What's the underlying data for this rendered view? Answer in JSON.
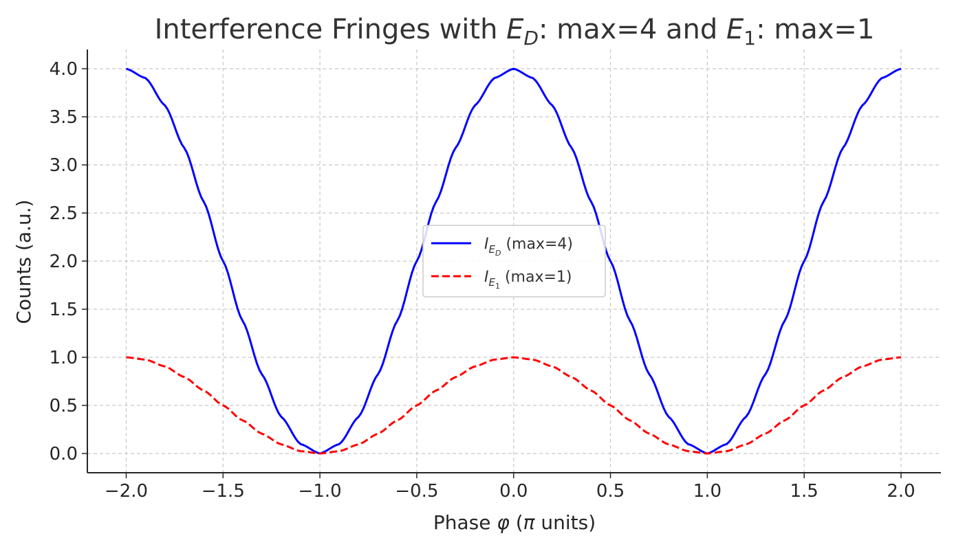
{
  "chart_data": {
    "type": "line",
    "title": "Interference Fringes with E_D: max=4 and E_1: max=1",
    "title_parts": {
      "pre": "Interference Fringes with ",
      "sym1": "E",
      "sub1": "D",
      "mid": ": max=4 and ",
      "sym2": "E",
      "sub2": "1",
      "post": ": max=1"
    },
    "xlabel": "Phase φ (π units)",
    "xlabel_parts": {
      "pre": "Phase ",
      "phi": "φ",
      "mid": " (",
      "pi": "π",
      "post": " units)"
    },
    "ylabel": "Counts (a.u.)",
    "xlim": [
      -2.2,
      2.2
    ],
    "ylim": [
      -0.2,
      4.2
    ],
    "xticks": [
      -2.0,
      -1.5,
      -1.0,
      -0.5,
      0.0,
      0.5,
      1.0,
      1.5,
      2.0
    ],
    "xtick_labels": [
      "−2.0",
      "−1.5",
      "−1.0",
      "−0.5",
      "0.0",
      "0.5",
      "1.0",
      "1.5",
      "2.0"
    ],
    "yticks": [
      0.0,
      0.5,
      1.0,
      1.5,
      2.0,
      2.5,
      3.0,
      3.5,
      4.0
    ],
    "ytick_labels": [
      "0.0",
      "0.5",
      "1.0",
      "1.5",
      "2.0",
      "2.5",
      "3.0",
      "3.5",
      "4.0"
    ],
    "grid": true,
    "legend_position": "center",
    "x": [
      -2.0,
      -1.9,
      -1.8,
      -1.7,
      -1.6,
      -1.5,
      -1.4,
      -1.3,
      -1.2,
      -1.1,
      -1.0,
      -0.9,
      -0.8,
      -0.7,
      -0.6,
      -0.5,
      -0.4,
      -0.3,
      -0.2,
      -0.1,
      0.0,
      0.1,
      0.2,
      0.3,
      0.4,
      0.5,
      0.6,
      0.7,
      0.8,
      0.9,
      1.0,
      1.1,
      1.2,
      1.3,
      1.4,
      1.5,
      1.6,
      1.7,
      1.8,
      1.9,
      2.0
    ],
    "series": [
      {
        "name": "I_ED (max=4)",
        "legend_sym": "I",
        "legend_sub": "E",
        "legend_subsub": "D",
        "legend_text": " (max=4)",
        "color": "#0000ff",
        "style": "solid",
        "values": [
          4.0,
          3.902,
          3.618,
          3.176,
          2.618,
          2.0,
          1.382,
          0.824,
          0.382,
          0.098,
          0.0,
          0.098,
          0.382,
          0.824,
          1.382,
          2.0,
          2.618,
          3.176,
          3.618,
          3.902,
          4.0,
          3.902,
          3.618,
          3.176,
          2.618,
          2.0,
          1.382,
          0.824,
          0.382,
          0.098,
          0.0,
          0.098,
          0.382,
          0.824,
          1.382,
          2.0,
          2.618,
          3.176,
          3.618,
          3.902,
          4.0
        ]
      },
      {
        "name": "I_E1 (max=1)",
        "legend_sym": "I",
        "legend_sub": "E",
        "legend_subsub": "1",
        "legend_text": " (max=1)",
        "color": "#ff0000",
        "style": "dashed",
        "values": [
          1.0,
          0.976,
          0.905,
          0.794,
          0.655,
          0.5,
          0.345,
          0.206,
          0.095,
          0.024,
          0.0,
          0.024,
          0.095,
          0.206,
          0.345,
          0.5,
          0.655,
          0.794,
          0.905,
          0.976,
          1.0,
          0.976,
          0.905,
          0.794,
          0.655,
          0.5,
          0.345,
          0.206,
          0.095,
          0.024,
          0.0,
          0.024,
          0.095,
          0.206,
          0.345,
          0.5,
          0.655,
          0.794,
          0.905,
          0.976,
          1.0
        ]
      }
    ]
  }
}
